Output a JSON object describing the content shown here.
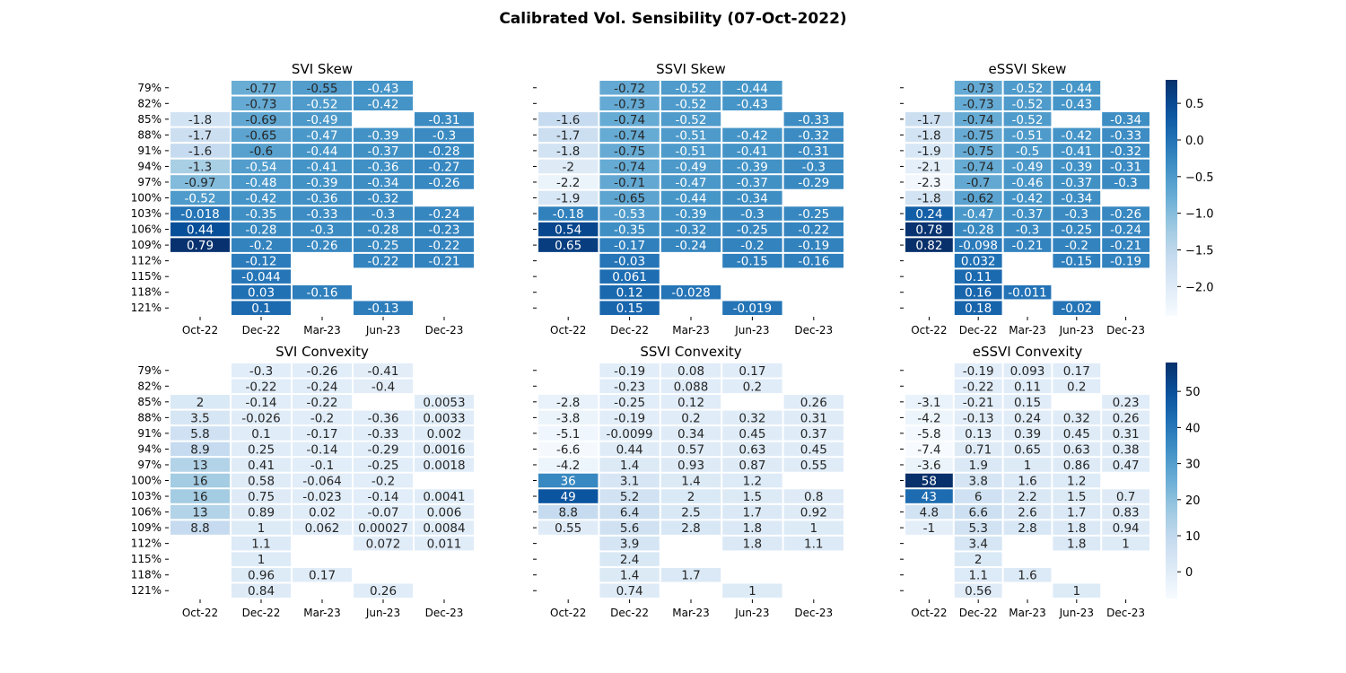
{
  "figure": {
    "title": "Calibrated Vol. Sensibility (07-Oct-2022)"
  },
  "chart_data": [
    {
      "type": "heatmap",
      "title": "SVI Skew",
      "columns": [
        "Oct-22",
        "Dec-22",
        "Mar-23",
        "Jun-23",
        "Dec-23"
      ],
      "rows": [
        "79%",
        "82%",
        "85%",
        "88%",
        "91%",
        "94%",
        "97%",
        "100%",
        "103%",
        "106%",
        "109%",
        "112%",
        "115%",
        "118%",
        "121%"
      ],
      "labels": [
        [
          "",
          "-0.77",
          "-0.55",
          "-0.43",
          ""
        ],
        [
          "",
          "-0.73",
          "-0.52",
          "-0.42",
          ""
        ],
        [
          "-1.8",
          "-0.69",
          "-0.49",
          "",
          "-0.31"
        ],
        [
          "-1.7",
          "-0.65",
          "-0.47",
          "-0.39",
          "-0.3"
        ],
        [
          "-1.6",
          "-0.6",
          "-0.44",
          "-0.37",
          "-0.28"
        ],
        [
          "-1.3",
          "-0.54",
          "-0.41",
          "-0.36",
          "-0.27"
        ],
        [
          "-0.97",
          "-0.48",
          "-0.39",
          "-0.34",
          "-0.26"
        ],
        [
          "-0.52",
          "-0.42",
          "-0.36",
          "-0.32",
          ""
        ],
        [
          "-0.018",
          "-0.35",
          "-0.33",
          "-0.3",
          "-0.24"
        ],
        [
          "0.44",
          "-0.28",
          "-0.3",
          "-0.28",
          "-0.23"
        ],
        [
          "0.79",
          "-0.2",
          "-0.26",
          "-0.25",
          "-0.22"
        ],
        [
          "",
          "-0.12",
          "",
          "-0.22",
          "-0.21"
        ],
        [
          "",
          "-0.044",
          "",
          "",
          ""
        ],
        [
          "",
          "0.03",
          "-0.16",
          "",
          ""
        ],
        [
          "",
          "0.1",
          "",
          "-0.13",
          ""
        ]
      ]
    },
    {
      "type": "heatmap",
      "title": "SSVI Skew",
      "columns": [
        "Oct-22",
        "Dec-22",
        "Mar-23",
        "Jun-23",
        "Dec-23"
      ],
      "rows": [
        "",
        "",
        "",
        "",
        "",
        "",
        "",
        "",
        "",
        "",
        "",
        "",
        "",
        "",
        ""
      ],
      "labels": [
        [
          "",
          "-0.72",
          "-0.52",
          "-0.44",
          ""
        ],
        [
          "",
          "-0.73",
          "-0.52",
          "-0.43",
          ""
        ],
        [
          "-1.6",
          "-0.74",
          "-0.52",
          "",
          "-0.33"
        ],
        [
          "-1.7",
          "-0.74",
          "-0.51",
          "-0.42",
          "-0.32"
        ],
        [
          "-1.8",
          "-0.75",
          "-0.51",
          "-0.41",
          "-0.31"
        ],
        [
          "-2",
          "-0.74",
          "-0.49",
          "-0.39",
          "-0.3"
        ],
        [
          "-2.2",
          "-0.71",
          "-0.47",
          "-0.37",
          "-0.29"
        ],
        [
          "-1.9",
          "-0.65",
          "-0.44",
          "-0.34",
          ""
        ],
        [
          "-0.18",
          "-0.53",
          "-0.39",
          "-0.3",
          "-0.25"
        ],
        [
          "0.54",
          "-0.35",
          "-0.32",
          "-0.25",
          "-0.22"
        ],
        [
          "0.65",
          "-0.17",
          "-0.24",
          "-0.2",
          "-0.19"
        ],
        [
          "",
          "-0.03",
          "",
          "-0.15",
          "-0.16"
        ],
        [
          "",
          "0.061",
          "",
          "",
          ""
        ],
        [
          "",
          "0.12",
          "-0.028",
          "",
          ""
        ],
        [
          "",
          "0.15",
          "",
          "-0.019",
          ""
        ]
      ]
    },
    {
      "type": "heatmap",
      "title": "eSSVI Skew",
      "columns": [
        "Oct-22",
        "Dec-22",
        "Mar-23",
        "Jun-23",
        "Dec-23"
      ],
      "rows": [
        "",
        "",
        "",
        "",
        "",
        "",
        "",
        "",
        "",
        "",
        "",
        "",
        "",
        "",
        ""
      ],
      "labels": [
        [
          "",
          "-0.73",
          "-0.52",
          "-0.44",
          ""
        ],
        [
          "",
          "-0.73",
          "-0.52",
          "-0.43",
          ""
        ],
        [
          "-1.7",
          "-0.74",
          "-0.52",
          "",
          "-0.34"
        ],
        [
          "-1.8",
          "-0.75",
          "-0.51",
          "-0.42",
          "-0.33"
        ],
        [
          "-1.9",
          "-0.75",
          "-0.5",
          "-0.41",
          "-0.32"
        ],
        [
          "-2.1",
          "-0.74",
          "-0.49",
          "-0.39",
          "-0.31"
        ],
        [
          "-2.3",
          "-0.7",
          "-0.46",
          "-0.37",
          "-0.3"
        ],
        [
          "-1.8",
          "-0.62",
          "-0.42",
          "-0.34",
          ""
        ],
        [
          "0.24",
          "-0.47",
          "-0.37",
          "-0.3",
          "-0.26"
        ],
        [
          "0.78",
          "-0.28",
          "-0.3",
          "-0.25",
          "-0.24"
        ],
        [
          "0.82",
          "-0.098",
          "-0.21",
          "-0.2",
          "-0.21"
        ],
        [
          "",
          "0.032",
          "",
          "-0.15",
          "-0.19"
        ],
        [
          "",
          "0.11",
          "",
          "",
          ""
        ],
        [
          "",
          "0.16",
          "-0.011",
          "",
          ""
        ],
        [
          "",
          "0.18",
          "",
          "-0.02",
          ""
        ]
      ],
      "colorbar": {
        "min": -2.4,
        "max": 0.82,
        "ticks": [
          "0.5",
          "0.0",
          "−0.5",
          "−1.0",
          "−1.5",
          "−2.0"
        ],
        "tick_values": [
          0.5,
          0.0,
          -0.5,
          -1.0,
          -1.5,
          -2.0
        ]
      }
    },
    {
      "type": "heatmap",
      "title": "SVI Convexity",
      "columns": [
        "Oct-22",
        "Dec-22",
        "Mar-23",
        "Jun-23",
        "Dec-23"
      ],
      "rows": [
        "79%",
        "82%",
        "85%",
        "88%",
        "91%",
        "94%",
        "97%",
        "100%",
        "103%",
        "106%",
        "109%",
        "112%",
        "115%",
        "118%",
        "121%"
      ],
      "labels": [
        [
          "",
          "-0.3",
          "-0.26",
          "-0.41",
          ""
        ],
        [
          "",
          "-0.22",
          "-0.24",
          "-0.4",
          ""
        ],
        [
          "2",
          "-0.14",
          "-0.22",
          "",
          "0.0053"
        ],
        [
          "3.5",
          "-0.026",
          "-0.2",
          "-0.36",
          "0.0033"
        ],
        [
          "5.8",
          "0.1",
          "-0.17",
          "-0.33",
          "0.002"
        ],
        [
          "8.9",
          "0.25",
          "-0.14",
          "-0.29",
          "0.0016"
        ],
        [
          "13",
          "0.41",
          "-0.1",
          "-0.25",
          "0.0018"
        ],
        [
          "16",
          "0.58",
          "-0.064",
          "-0.2",
          ""
        ],
        [
          "16",
          "0.75",
          "-0.023",
          "-0.14",
          "0.0041"
        ],
        [
          "13",
          "0.89",
          "0.02",
          "-0.07",
          "0.006"
        ],
        [
          "8.8",
          "1",
          "0.062",
          "0.00027",
          "0.0084"
        ],
        [
          "",
          "1.1",
          "",
          "0.072",
          "0.011"
        ],
        [
          "",
          "1",
          "",
          "",
          ""
        ],
        [
          "",
          "0.96",
          "0.17",
          "",
          ""
        ],
        [
          "",
          "0.84",
          "",
          "0.26",
          ""
        ]
      ]
    },
    {
      "type": "heatmap",
      "title": "SSVI Convexity",
      "columns": [
        "Oct-22",
        "Dec-22",
        "Mar-23",
        "Jun-23",
        "Dec-23"
      ],
      "rows": [
        "",
        "",
        "",
        "",
        "",
        "",
        "",
        "",
        "",
        "",
        "",
        "",
        "",
        "",
        ""
      ],
      "labels": [
        [
          "",
          "-0.19",
          "0.08",
          "0.17",
          ""
        ],
        [
          "",
          "-0.23",
          "0.088",
          "0.2",
          ""
        ],
        [
          "-2.8",
          "-0.25",
          "0.12",
          "",
          "0.26"
        ],
        [
          "-3.8",
          "-0.19",
          "0.2",
          "0.32",
          "0.31"
        ],
        [
          "-5.1",
          "-0.0099",
          "0.34",
          "0.45",
          "0.37"
        ],
        [
          "-6.6",
          "0.44",
          "0.57",
          "0.63",
          "0.45"
        ],
        [
          "-4.2",
          "1.4",
          "0.93",
          "0.87",
          "0.55"
        ],
        [
          "36",
          "3.1",
          "1.4",
          "1.2",
          ""
        ],
        [
          "49",
          "5.2",
          "2",
          "1.5",
          "0.8"
        ],
        [
          "8.8",
          "6.4",
          "2.5",
          "1.7",
          "0.92"
        ],
        [
          "0.55",
          "5.6",
          "2.8",
          "1.8",
          "1"
        ],
        [
          "",
          "3.9",
          "",
          "1.8",
          "1.1"
        ],
        [
          "",
          "2.4",
          "",
          "",
          ""
        ],
        [
          "",
          "1.4",
          "1.7",
          "",
          ""
        ],
        [
          "",
          "0.74",
          "",
          "1",
          ""
        ]
      ]
    },
    {
      "type": "heatmap",
      "title": "eSSVI Convexity",
      "columns": [
        "Oct-22",
        "Dec-22",
        "Mar-23",
        "Jun-23",
        "Dec-23"
      ],
      "rows": [
        "",
        "",
        "",
        "",
        "",
        "",
        "",
        "",
        "",
        "",
        "",
        "",
        "",
        "",
        ""
      ],
      "labels": [
        [
          "",
          "-0.19",
          "0.093",
          "0.17",
          ""
        ],
        [
          "",
          "-0.22",
          "0.11",
          "0.2",
          ""
        ],
        [
          "-3.1",
          "-0.21",
          "0.15",
          "",
          "0.23"
        ],
        [
          "-4.2",
          "-0.13",
          "0.24",
          "0.32",
          "0.26"
        ],
        [
          "-5.8",
          "0.13",
          "0.39",
          "0.45",
          "0.31"
        ],
        [
          "-7.4",
          "0.71",
          "0.65",
          "0.63",
          "0.38"
        ],
        [
          "-3.6",
          "1.9",
          "1",
          "0.86",
          "0.47"
        ],
        [
          "58",
          "3.8",
          "1.6",
          "1.2",
          ""
        ],
        [
          "43",
          "6",
          "2.2",
          "1.5",
          "0.7"
        ],
        [
          "4.8",
          "6.6",
          "2.6",
          "1.7",
          "0.83"
        ],
        [
          "-1",
          "5.3",
          "2.8",
          "1.8",
          "0.94"
        ],
        [
          "",
          "3.4",
          "",
          "1.8",
          "1"
        ],
        [
          "",
          "2",
          "",
          "",
          ""
        ],
        [
          "",
          "1.1",
          "1.6",
          "",
          ""
        ],
        [
          "",
          "0.56",
          "",
          "1",
          ""
        ]
      ],
      "colorbar": {
        "min": -7.4,
        "max": 58,
        "ticks": [
          "50",
          "40",
          "30",
          "20",
          "10",
          "0"
        ],
        "tick_values": [
          50,
          40,
          30,
          20,
          10,
          0
        ]
      }
    }
  ]
}
